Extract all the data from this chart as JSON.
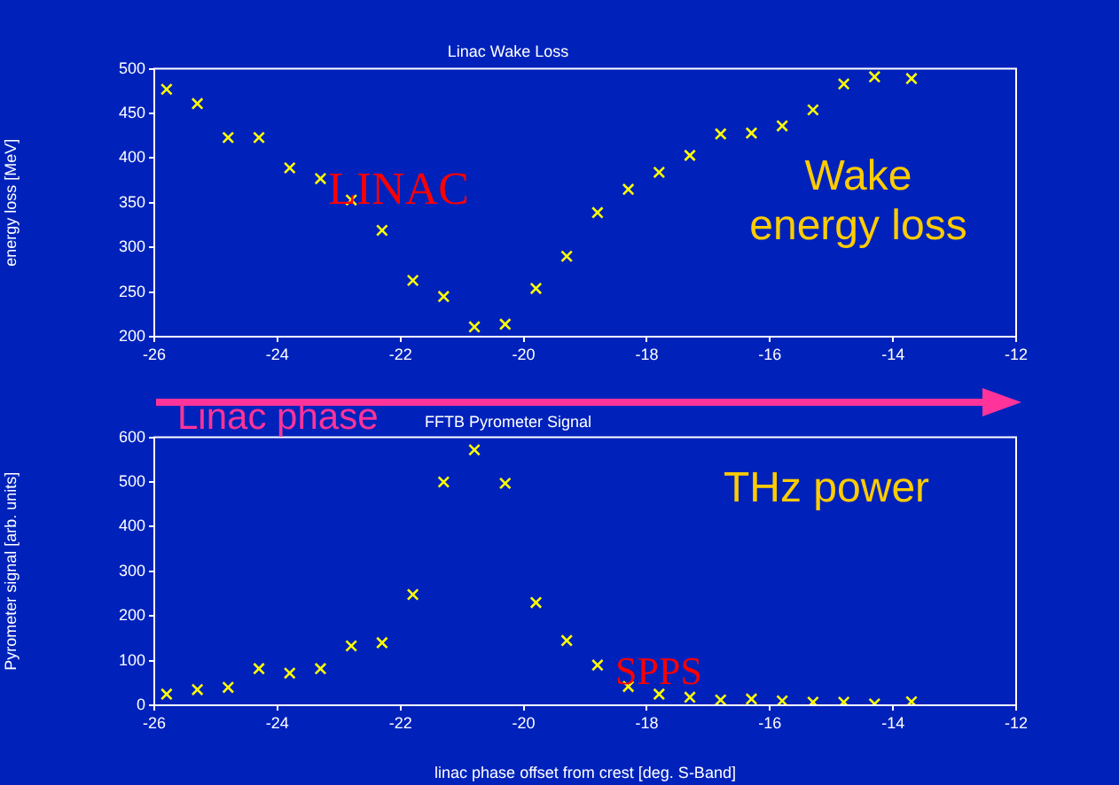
{
  "chart_data": [
    {
      "type": "scatter",
      "title": "Linac Wake Loss",
      "ylabel": "energy loss [MeV]",
      "x": [
        -25.8,
        -25.3,
        -24.8,
        -24.3,
        -23.8,
        -23.3,
        -22.8,
        -22.3,
        -21.8,
        -21.3,
        -20.8,
        -20.3,
        -19.8,
        -19.3,
        -18.8,
        -18.3,
        -17.8,
        -17.3,
        -16.8,
        -16.3,
        -15.8,
        -15.3,
        -14.8,
        -14.3,
        -13.7
      ],
      "series": [
        {
          "color": "#ffff00",
          "values": [
            477,
            461,
            423,
            423,
            389,
            377,
            353,
            319,
            263,
            245,
            211,
            214,
            254,
            290,
            339,
            365,
            384,
            403,
            427,
            428,
            436,
            454,
            483,
            491,
            489
          ]
        }
      ],
      "xlim": [
        -26,
        -12
      ],
      "xticks": [
        -26,
        -24,
        -22,
        -20,
        -18,
        -16,
        -14,
        -12
      ],
      "ylim": [
        200,
        500
      ],
      "yticks": [
        200,
        250,
        300,
        350,
        400,
        450,
        500
      ],
      "marker": "cross",
      "grid": false,
      "legend": false,
      "annotations": [
        "LINAC",
        "Wake energy loss",
        "Linac phase"
      ]
    },
    {
      "type": "scatter",
      "title": "FFTB Pyrometer Signal",
      "xlabel": "linac phase offset from crest [deg. S-Band]",
      "ylabel": "Pyrometer signal [arb. units]",
      "x": [
        -25.8,
        -25.3,
        -24.8,
        -24.3,
        -23.8,
        -23.3,
        -22.8,
        -22.3,
        -21.8,
        -21.3,
        -20.8,
        -20.3,
        -19.8,
        -19.3,
        -18.8,
        -18.3,
        -17.8,
        -17.3,
        -16.8,
        -16.3,
        -15.8,
        -15.3,
        -14.8,
        -14.3,
        -13.7
      ],
      "series": [
        {
          "color": "#ffff00",
          "values": [
            25,
            35,
            40,
            82,
            72,
            82,
            133,
            140,
            248,
            500,
            572,
            497,
            230,
            145,
            90,
            42,
            25,
            18,
            12,
            14,
            10,
            7,
            7,
            3,
            8
          ]
        }
      ],
      "xlim": [
        -26,
        -12
      ],
      "xticks": [
        -26,
        -24,
        -22,
        -20,
        -18,
        -16,
        -14,
        -12
      ],
      "ylim": [
        0,
        600
      ],
      "yticks": [
        0,
        100,
        200,
        300,
        400,
        500,
        600
      ],
      "marker": "cross",
      "grid": false,
      "legend": false,
      "annotations": [
        "THz power",
        "SPPS"
      ]
    }
  ]
}
